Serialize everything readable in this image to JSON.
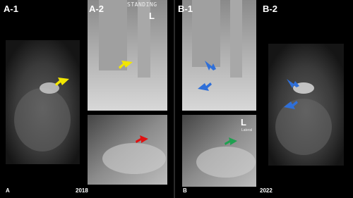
{
  "panels": {
    "a1": {
      "label": "A-1"
    },
    "a2": {
      "label": "A-2",
      "annotation": "STANDING",
      "side": "L"
    },
    "b1": {
      "label": "B-1",
      "side": "L",
      "view": "Lateral"
    },
    "b2": {
      "label": "B-2"
    }
  },
  "footer": {
    "left_letter": "A",
    "left_year": "2018",
    "right_letter": "B",
    "right_year": "2022"
  }
}
